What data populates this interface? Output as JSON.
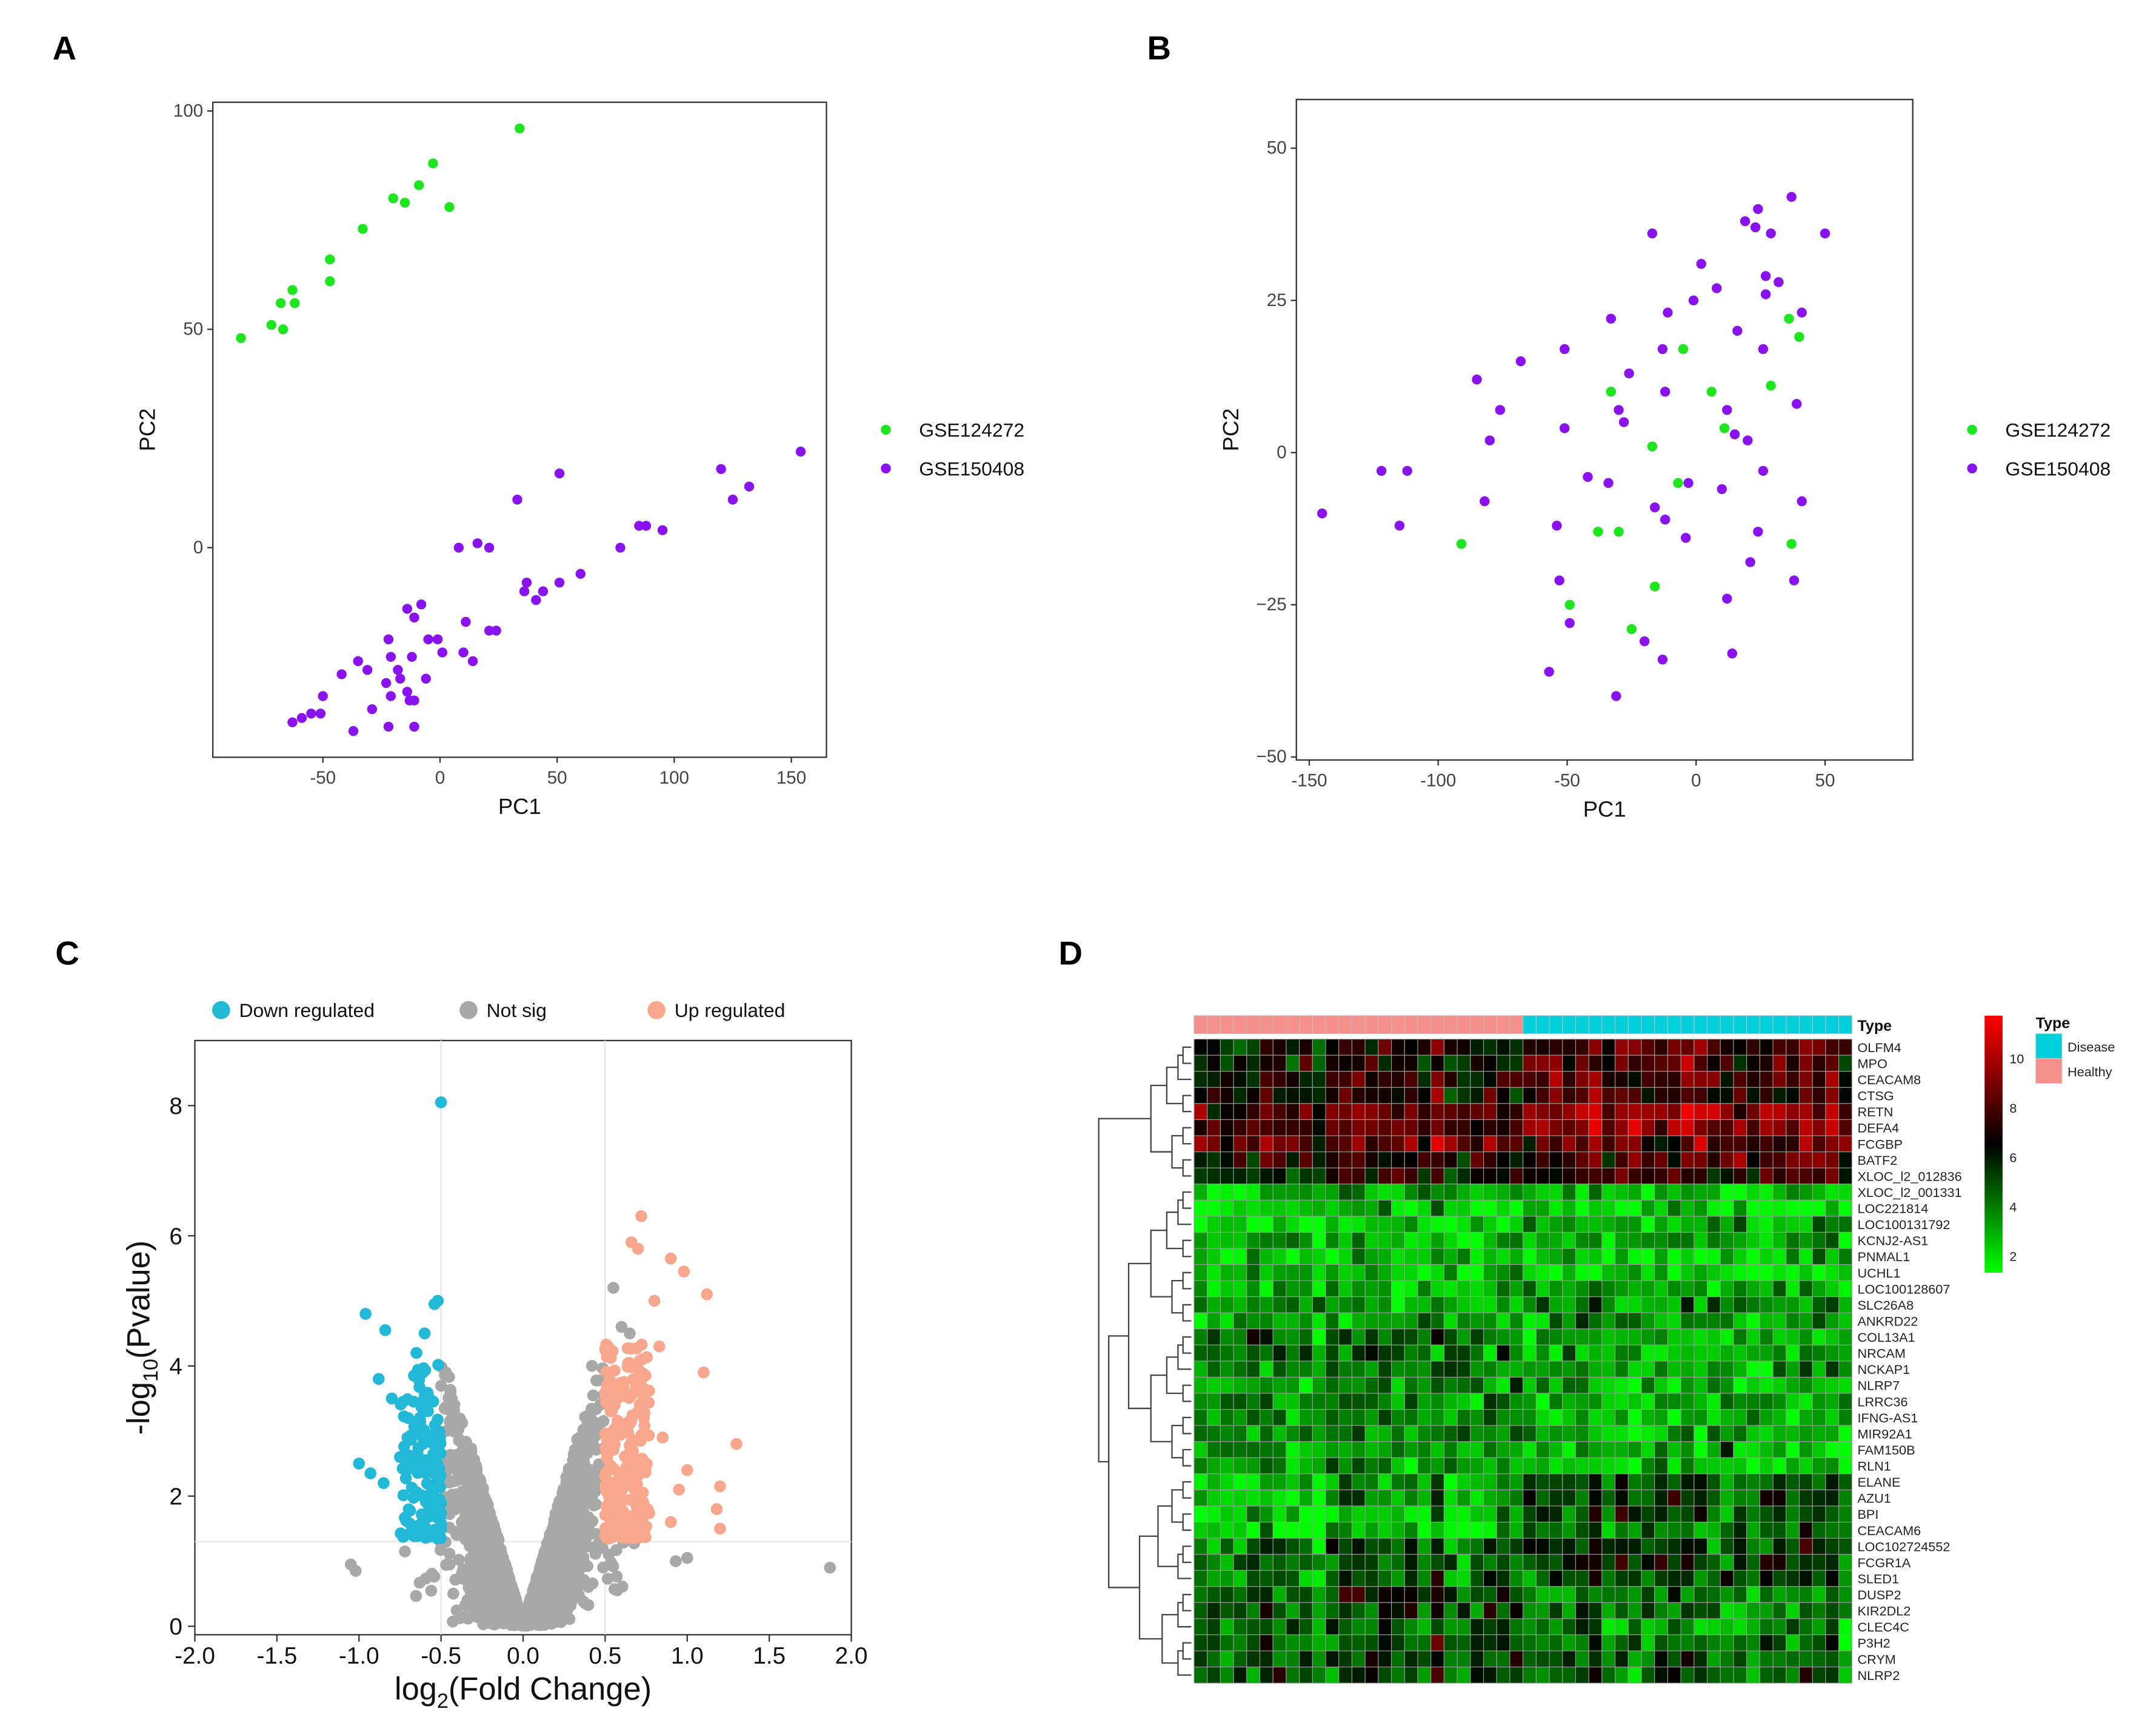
{
  "panels": {
    "a": "A",
    "b": "B",
    "c": "C",
    "d": "D"
  },
  "colors": {
    "gse124272": "#1ee61e",
    "gse150408": "#8a12f0",
    "down": "#22b8d8",
    "notsig": "#a8a8a8",
    "up": "#f8a68c",
    "disease": "#00d0dc",
    "healthy": "#f6908a"
  },
  "chart_data": [
    {
      "type": "scatter",
      "panel": "A",
      "xlabel": "PC1",
      "ylabel": "PC2",
      "xlim": [
        -97,
        165
      ],
      "ylim": [
        -48,
        102
      ],
      "xticks": [
        -50,
        0,
        50,
        100,
        150
      ],
      "yticks": [
        0,
        50,
        100
      ],
      "grid": false,
      "legend_position": "right",
      "series": [
        {
          "name": "GSE124272",
          "color_key": "gse124272",
          "points": [
            [
              -85,
              48
            ],
            [
              -72,
              51
            ],
            [
              -68,
              56
            ],
            [
              -67,
              50
            ],
            [
              -63,
              59
            ],
            [
              -62,
              56
            ],
            [
              -47,
              66
            ],
            [
              -47,
              61
            ],
            [
              -33,
              73
            ],
            [
              -20,
              80
            ],
            [
              -15,
              79
            ],
            [
              -9,
              83
            ],
            [
              -3,
              88
            ],
            [
              4,
              78
            ],
            [
              34,
              96
            ]
          ]
        },
        {
          "name": "GSE150408",
          "color_key": "gse150408",
          "points": [
            [
              154,
              22
            ],
            [
              120,
              18
            ],
            [
              132,
              14
            ],
            [
              125,
              11
            ],
            [
              51,
              17
            ],
            [
              33,
              11
            ],
            [
              85,
              5
            ],
            [
              88,
              5
            ],
            [
              95,
              4
            ],
            [
              77,
              0
            ],
            [
              8,
              0
            ],
            [
              16,
              1
            ],
            [
              21,
              0
            ],
            [
              60,
              -6
            ],
            [
              51,
              -8
            ],
            [
              37,
              -8
            ],
            [
              44,
              -10
            ],
            [
              36,
              -10
            ],
            [
              41,
              -12
            ],
            [
              -8,
              -13
            ],
            [
              -14,
              -14
            ],
            [
              -11,
              -16
            ],
            [
              11,
              -17
            ],
            [
              24,
              -19
            ],
            [
              21,
              -19
            ],
            [
              -22,
              -21
            ],
            [
              -5,
              -21
            ],
            [
              -1,
              -21
            ],
            [
              1,
              -24
            ],
            [
              10,
              -24
            ],
            [
              -21,
              -25
            ],
            [
              -12,
              -25
            ],
            [
              -18,
              -28
            ],
            [
              14,
              -26
            ],
            [
              -35,
              -26
            ],
            [
              -42,
              -29
            ],
            [
              -31,
              -28
            ],
            [
              -6,
              -30
            ],
            [
              -23,
              -31
            ],
            [
              -17,
              -30
            ],
            [
              -50,
              -34
            ],
            [
              -14,
              -33
            ],
            [
              -21,
              -34
            ],
            [
              -13,
              -35
            ],
            [
              -11,
              -35
            ],
            [
              -29,
              -37
            ],
            [
              -55,
              -38
            ],
            [
              -51,
              -38
            ],
            [
              -63,
              -40
            ],
            [
              -59,
              -39
            ],
            [
              -37,
              -42
            ],
            [
              -22,
              -41
            ],
            [
              -11,
              -41
            ]
          ]
        }
      ]
    },
    {
      "type": "scatter",
      "panel": "B",
      "xlabel": "PC1",
      "ylabel": "PC2",
      "xlim": [
        -155,
        84
      ],
      "ylim": [
        -50.5,
        58
      ],
      "xticks": [
        -150,
        -100,
        -50,
        0,
        50
      ],
      "yticks": [
        -50,
        -25,
        0,
        25,
        50
      ],
      "grid": false,
      "legend_position": "right",
      "series": [
        {
          "name": "GSE124272",
          "color_key": "gse124272",
          "points": [
            [
              -33,
              10
            ],
            [
              -5,
              17
            ],
            [
              6,
              10
            ],
            [
              -17,
              1
            ],
            [
              -7,
              -5
            ],
            [
              11,
              4
            ],
            [
              29,
              11
            ],
            [
              36,
              22
            ],
            [
              40,
              19
            ],
            [
              -38,
              -13
            ],
            [
              -30,
              -13
            ],
            [
              -91,
              -15
            ],
            [
              -16,
              -22
            ],
            [
              -49,
              -25
            ],
            [
              -25,
              -29
            ],
            [
              37,
              -15
            ]
          ]
        },
        {
          "name": "GSE150408",
          "color_key": "gse150408",
          "points": [
            [
              -145,
              -10
            ],
            [
              -122,
              -3
            ],
            [
              -112,
              -3
            ],
            [
              -115,
              -12
            ],
            [
              -85,
              12
            ],
            [
              -76,
              7
            ],
            [
              -80,
              2
            ],
            [
              -82,
              -8
            ],
            [
              -68,
              15
            ],
            [
              -51,
              17
            ],
            [
              -51,
              4
            ],
            [
              -54,
              -12
            ],
            [
              -53,
              -21
            ],
            [
              -49,
              -28
            ],
            [
              -57,
              -36
            ],
            [
              -42,
              -4
            ],
            [
              -34,
              -5
            ],
            [
              -33,
              22
            ],
            [
              -26,
              13
            ],
            [
              -30,
              7
            ],
            [
              -28,
              5
            ],
            [
              -17,
              36
            ],
            [
              -13,
              17
            ],
            [
              -11,
              23
            ],
            [
              -12,
              10
            ],
            [
              -16,
              -9
            ],
            [
              -12,
              -11
            ],
            [
              -3,
              -5
            ],
            [
              -4,
              -14
            ],
            [
              -20,
              -31
            ],
            [
              -13,
              -34
            ],
            [
              -31,
              -40
            ],
            [
              -1,
              25
            ],
            [
              2,
              31
            ],
            [
              8,
              27
            ],
            [
              16,
              20
            ],
            [
              12,
              7
            ],
            [
              15,
              3
            ],
            [
              20,
              2
            ],
            [
              10,
              -6
            ],
            [
              19,
              38
            ],
            [
              24,
              40
            ],
            [
              23,
              37
            ],
            [
              29,
              36
            ],
            [
              37,
              42
            ],
            [
              50,
              36
            ],
            [
              27,
              29
            ],
            [
              32,
              28
            ],
            [
              27,
              26
            ],
            [
              41,
              23
            ],
            [
              26,
              17
            ],
            [
              26,
              -3
            ],
            [
              24,
              -13
            ],
            [
              21,
              -18
            ],
            [
              38,
              -21
            ],
            [
              12,
              -24
            ],
            [
              14,
              -33
            ],
            [
              39,
              8
            ],
            [
              41,
              -8
            ]
          ]
        }
      ]
    },
    {
      "type": "scatter",
      "panel": "C",
      "subtype": "volcano",
      "xlabel": "log2(Fold Change)",
      "xlabel_main": "log",
      "xlabel_sub": "2",
      "xlabel_rest": "(Fold Change)",
      "ylabel_main": "-log",
      "ylabel_sub": "10",
      "ylabel_rest": "(Pvalue)",
      "xlim": [
        -2.0,
        2.0
      ],
      "ylim": [
        -0.13,
        9.0
      ],
      "xticks": [
        "-2.0",
        "-1.5",
        "-1.0",
        "-0.5",
        "0.0",
        "0.5",
        "1.0",
        "1.5",
        "2.0"
      ],
      "yticks": [
        0,
        2,
        4,
        6,
        8
      ],
      "thresholds": {
        "log2fc": 0.5,
        "neg_log10_p": 1.3
      },
      "legend_position": "top",
      "legend": [
        {
          "name": "Down regulated",
          "color_key": "down"
        },
        {
          "name": "Not sig",
          "color_key": "notsig"
        },
        {
          "name": "Up regulated",
          "color_key": "up"
        }
      ],
      "counts_rendered": {
        "notsig": 3200,
        "down": 140,
        "up": 230
      },
      "highlight_points": {
        "down": [
          [
            -0.5,
            8.05
          ],
          [
            -0.52,
            5.0
          ],
          [
            -0.54,
            4.95
          ],
          [
            -0.96,
            4.8
          ],
          [
            -0.84,
            4.55
          ],
          [
            -1.0,
            2.5
          ],
          [
            -0.93,
            2.35
          ],
          [
            -0.85,
            2.2
          ],
          [
            -0.88,
            3.8
          ],
          [
            -0.8,
            3.5
          ],
          [
            -0.75,
            2.6
          ],
          [
            -0.7,
            3.2
          ],
          [
            -0.65,
            4.2
          ],
          [
            -0.6,
            4.5
          ],
          [
            -0.62,
            3.9
          ]
        ],
        "up": [
          [
            0.72,
            6.3
          ],
          [
            0.66,
            5.9
          ],
          [
            0.7,
            5.8
          ],
          [
            0.9,
            5.65
          ],
          [
            0.98,
            5.45
          ],
          [
            1.12,
            5.1
          ],
          [
            0.8,
            5.0
          ],
          [
            0.83,
            4.3
          ],
          [
            1.1,
            3.9
          ],
          [
            1.3,
            2.8
          ],
          [
            1.2,
            2.15
          ],
          [
            1.18,
            1.8
          ],
          [
            1.2,
            1.5
          ],
          [
            1.0,
            2.4
          ],
          [
            0.95,
            2.1
          ],
          [
            0.9,
            1.6
          ],
          [
            0.85,
            2.9
          ]
        ],
        "notsig": [
          [
            1.87,
            0.9
          ],
          [
            -1.02,
            0.85
          ],
          [
            -1.05,
            0.95
          ],
          [
            1.0,
            1.05
          ],
          [
            0.93,
            1.0
          ],
          [
            -0.72,
            1.15
          ],
          [
            0.65,
            4.5
          ],
          [
            0.6,
            4.6
          ],
          [
            0.55,
            5.2
          ],
          [
            -0.47,
            3.9
          ],
          [
            0.42,
            4.0
          ]
        ]
      }
    },
    {
      "type": "heatmap",
      "panel": "D",
      "annotation_title": "Type",
      "annotation_legend": [
        {
          "name": "Disease",
          "color_key": "disease"
        },
        {
          "name": "Healthy",
          "color_key": "healthy"
        }
      ],
      "columns": {
        "healthy": 25,
        "disease": 25
      },
      "colorbar_ticks": [
        10,
        8,
        6,
        4,
        2
      ],
      "color_scale": {
        "low": "#00ff00",
        "mid": "#000000",
        "high": "#ff0000",
        "low_value": 1.5,
        "mid_value": 6,
        "high_value": 11
      },
      "genes": [
        {
          "name": "OLFM4",
          "healthy": 6.0,
          "disease": 7.5
        },
        {
          "name": "MPO",
          "healthy": 6.0,
          "disease": 7.2
        },
        {
          "name": "CEACAM8",
          "healthy": 6.3,
          "disease": 7.5
        },
        {
          "name": "CTSG",
          "healthy": 6.3,
          "disease": 7.5
        },
        {
          "name": "RETN",
          "healthy": 7.5,
          "disease": 9.0
        },
        {
          "name": "DEFA4",
          "healthy": 7.8,
          "disease": 9.0
        },
        {
          "name": "FCGBP",
          "healthy": 8.0,
          "disease": 7.3
        },
        {
          "name": "BATF2",
          "healthy": 6.5,
          "disease": 7.5
        },
        {
          "name": "XLOC_l2_012836",
          "healthy": 6.0,
          "disease": 6.8
        },
        {
          "name": "XLOC_l2_001331",
          "healthy": 3.0,
          "disease": 2.5
        },
        {
          "name": "LOC221814",
          "healthy": 2.3,
          "disease": 2.2
        },
        {
          "name": "LOC100131792",
          "healthy": 2.3,
          "disease": 2.8
        },
        {
          "name": "KCNJ2-AS1",
          "healthy": 2.6,
          "disease": 3.0
        },
        {
          "name": "PNMAL1",
          "healthy": 2.5,
          "disease": 2.2
        },
        {
          "name": "UCHL1",
          "healthy": 2.6,
          "disease": 1.9
        },
        {
          "name": "LOC100128607",
          "healthy": 2.8,
          "disease": 3.5
        },
        {
          "name": "SLC26A8",
          "healthy": 3.0,
          "disease": 3.6
        },
        {
          "name": "ANKRD22",
          "healthy": 3.0,
          "disease": 3.6
        },
        {
          "name": "COL13A1",
          "healthy": 4.0,
          "disease": 2.8
        },
        {
          "name": "NRCAM",
          "healthy": 4.0,
          "disease": 3.0
        },
        {
          "name": "NCKAP1",
          "healthy": 4.0,
          "disease": 3.0
        },
        {
          "name": "NLRP7",
          "healthy": 3.5,
          "disease": 2.8
        },
        {
          "name": "LRRC36",
          "healthy": 3.8,
          "disease": 3.0
        },
        {
          "name": "IFNG-AS1",
          "healthy": 3.5,
          "disease": 2.8
        },
        {
          "name": "MIR92A1",
          "healthy": 3.5,
          "disease": 2.7
        },
        {
          "name": "FAM150B",
          "healthy": 3.3,
          "disease": 2.7
        },
        {
          "name": "RLN1",
          "healthy": 3.3,
          "disease": 2.8
        },
        {
          "name": "ELANE",
          "healthy": 3.0,
          "disease": 4.8
        },
        {
          "name": "AZU1",
          "healthy": 3.0,
          "disease": 4.8
        },
        {
          "name": "BPI",
          "healthy": 2.7,
          "disease": 4.4
        },
        {
          "name": "CEACAM6",
          "healthy": 2.4,
          "disease": 4.2
        },
        {
          "name": "LOC102724552",
          "healthy": 4.5,
          "disease": 5.2
        },
        {
          "name": "FCGR1A",
          "healthy": 4.3,
          "disease": 5.2
        },
        {
          "name": "SLED1",
          "healthy": 4.3,
          "disease": 5.0
        },
        {
          "name": "DUSP2",
          "healthy": 4.8,
          "disease": 3.8
        },
        {
          "name": "KIR2DL2",
          "healthy": 4.8,
          "disease": 4.0
        },
        {
          "name": "CLEC4C",
          "healthy": 4.5,
          "disease": 3.5
        },
        {
          "name": "P3H2",
          "healthy": 4.8,
          "disease": 4.2
        },
        {
          "name": "CRYM",
          "healthy": 4.6,
          "disease": 4.2
        },
        {
          "name": "NLRP2",
          "healthy": 5.0,
          "disease": 4.2
        }
      ]
    }
  ]
}
